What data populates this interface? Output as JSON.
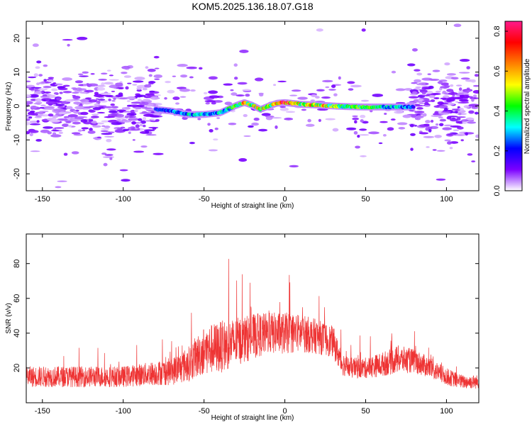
{
  "title": "KOM5.2025.136.18.07.G18",
  "colors": {
    "snr_line": "#ee3333",
    "frame": "#000000"
  },
  "chart_data": [
    {
      "type": "heatmap",
      "xlabel": "Height of straight line (km)",
      "ylabel": "Frequency (Hz)",
      "xlim": [
        -160,
        120
      ],
      "ylim": [
        -25,
        25
      ],
      "xticks": [
        -150,
        -100,
        -50,
        0,
        50,
        100
      ],
      "yticks": [
        -20,
        -10,
        0,
        10,
        20
      ],
      "colorbar": {
        "label": "Normalized spectral amplitude",
        "range": [
          0.0,
          0.85
        ],
        "ticks": [
          0.0,
          0.2,
          0.4,
          0.6,
          0.8
        ],
        "colors": [
          "#ffffff",
          "#7b00ff",
          "#0000ff",
          "#00ffff",
          "#00ff00",
          "#ffff00",
          "#ff7f00",
          "#ff0000",
          "#ff1a8c"
        ]
      },
      "ridge": {
        "x": [
          -80,
          -70,
          -60,
          -50,
          -40,
          -30,
          -25,
          -20,
          -15,
          -10,
          -5,
          0,
          10,
          20,
          30,
          40,
          50,
          60,
          70,
          80
        ],
        "freq": [
          -1.0,
          -1.5,
          -2.5,
          -2.5,
          -2.0,
          0.2,
          1.0,
          0.2,
          -1.0,
          0.0,
          0.8,
          1.0,
          0.5,
          0.3,
          0.0,
          -0.2,
          -0.3,
          -0.3,
          -0.3,
          -0.3
        ],
        "amplitude": [
          0.2,
          0.25,
          0.3,
          0.3,
          0.3,
          0.4,
          0.6,
          0.5,
          0.6,
          0.45,
          0.55,
          0.8,
          0.5,
          0.6,
          0.45,
          0.4,
          0.4,
          0.35,
          0.3,
          0.25
        ]
      },
      "noise": {
        "amplitude": 0.08,
        "spread_hz": 5
      }
    },
    {
      "type": "line",
      "xlabel": "Height of straight line (km)",
      "ylabel": "SNR (v/v)",
      "xlim": [
        -160,
        120
      ],
      "ylim": [
        0,
        97
      ],
      "xticks": [
        -150,
        -100,
        -50,
        0,
        50,
        100
      ],
      "yticks": [
        20,
        40,
        60,
        80
      ],
      "series": [
        {
          "x": [
            -160,
            -140,
            -120,
            -100,
            -80,
            -70,
            -60,
            -50,
            -40,
            -30,
            -20,
            -10,
            0,
            10,
            20,
            30,
            35,
            40,
            50,
            60,
            70,
            80,
            90,
            100,
            110,
            120
          ],
          "mean": [
            15,
            15,
            15,
            15,
            17,
            18,
            22,
            30,
            32,
            35,
            38,
            40,
            40,
            40,
            38,
            35,
            23,
            20,
            20,
            22,
            25,
            24,
            20,
            15,
            12,
            12
          ],
          "spread": [
            6,
            6,
            6,
            6,
            7,
            8,
            10,
            14,
            15,
            14,
            13,
            12,
            12,
            11,
            10,
            9,
            7,
            6,
            6,
            7,
            8,
            7,
            6,
            5,
            4,
            4
          ]
        }
      ]
    }
  ]
}
